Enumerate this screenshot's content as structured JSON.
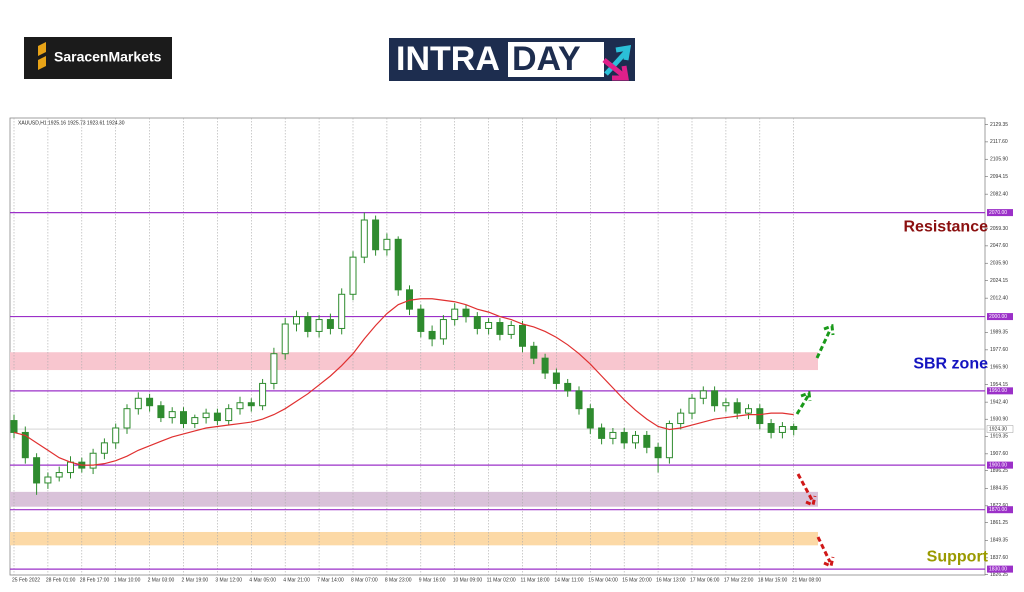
{
  "header": {
    "brand": "SaracenMarkets",
    "title_parts": [
      "INTRA",
      "DAY"
    ]
  },
  "chart_data": {
    "type": "candlestick",
    "title": "XAUUSD,H1  1925.16 1925.73 1923.61 1924.30",
    "color": "#2e8b2e",
    "categories": [
      "25 Feb 2022",
      null,
      null,
      "28 Feb 01:00",
      null,
      null,
      "28 Feb 17:00",
      null,
      null,
      "1 Mar 10:00",
      null,
      null,
      "2 Mar 03:00",
      null,
      null,
      "2 Mar 19:00",
      null,
      null,
      "3 Mar 12:00",
      null,
      null,
      "4 Mar 05:00",
      null,
      null,
      "4 Mar 21:00",
      null,
      null,
      "7 Mar 14:00",
      null,
      null,
      "8 Mar 07:00",
      null,
      null,
      "8 Mar 23:00",
      null,
      null,
      "9 Mar 16:00",
      null,
      null,
      "10 Mar 09:00",
      null,
      null,
      "11 Mar 02:00",
      null,
      null,
      "11 Mar 18:00",
      null,
      null,
      "14 Mar 11:00",
      null,
      null,
      "15 Mar 04:00",
      null,
      null,
      "15 Mar 20:00",
      null,
      null,
      "16 Mar 13:00",
      null,
      null,
      "17 Mar 06:00",
      null,
      null,
      "17 Mar 22:00",
      null,
      null,
      "18 Mar 15:00",
      null,
      null,
      "21 Mar 08:00"
    ],
    "open": [
      1930,
      1922,
      1905,
      1888,
      1892,
      1895,
      1902,
      1898,
      1908,
      1915,
      1925,
      1938,
      1945,
      1940,
      1932,
      1936,
      1928,
      1932,
      1935,
      1930,
      1938,
      1942,
      1940,
      1955,
      1975,
      1995,
      2000,
      1990,
      1998,
      1992,
      2015,
      2040,
      2065,
      2045,
      2052,
      2018,
      2005,
      1990,
      1985,
      1998,
      2005,
      2000,
      1992,
      1996,
      1988,
      1994,
      1980,
      1972,
      1962,
      1955,
      1950,
      1938,
      1925,
      1918,
      1922,
      1915,
      1920,
      1912,
      1905,
      1928,
      1935,
      1945,
      1950,
      1940,
      1942,
      1935,
      1938,
      1928,
      1922,
      1926
    ],
    "high": [
      1934,
      1926,
      1908,
      1895,
      1899,
      1906,
      1905,
      1911,
      1918,
      1928,
      1941,
      1949,
      1948,
      1943,
      1939,
      1939,
      1934,
      1938,
      1938,
      1941,
      1946,
      1945,
      1958,
      1979,
      1999,
      2004,
      2003,
      2001,
      2002,
      2019,
      2044,
      2070,
      2068,
      2056,
      2054,
      2021,
      2008,
      1994,
      2001,
      2009,
      2008,
      2003,
      1999,
      1999,
      1997,
      1997,
      1983,
      1975,
      1965,
      1958,
      1953,
      1941,
      1928,
      1925,
      1925,
      1923,
      1923,
      1915,
      1930,
      1938,
      1948,
      1953,
      1953,
      1945,
      1945,
      1941,
      1941,
      1931,
      1929,
      1928
    ],
    "low": [
      1918,
      1901,
      1880,
      1884,
      1889,
      1891,
      1895,
      1894,
      1904,
      1911,
      1921,
      1934,
      1936,
      1929,
      1928,
      1925,
      1925,
      1928,
      1927,
      1927,
      1934,
      1936,
      1937,
      1951,
      1971,
      1990,
      1986,
      1986,
      1988,
      1988,
      2011,
      2036,
      2041,
      2041,
      2014,
      2001,
      1986,
      1980,
      1981,
      1994,
      1996,
      1988,
      1988,
      1984,
      1985,
      1976,
      1968,
      1958,
      1951,
      1946,
      1934,
      1921,
      1914,
      1914,
      1911,
      1911,
      1908,
      1895,
      1901,
      1924,
      1931,
      1941,
      1936,
      1936,
      1931,
      1931,
      1924,
      1918,
      1918,
      1920
    ],
    "close": [
      1922,
      1905,
      1888,
      1892,
      1895,
      1902,
      1898,
      1908,
      1915,
      1925,
      1938,
      1945,
      1940,
      1932,
      1936,
      1928,
      1932,
      1935,
      1930,
      1938,
      1942,
      1940,
      1955,
      1975,
      1995,
      2000,
      1990,
      1998,
      1992,
      2015,
      2040,
      2065,
      2045,
      2052,
      2018,
      2005,
      1990,
      1985,
      1998,
      2005,
      2000,
      1992,
      1996,
      1988,
      1994,
      1980,
      1972,
      1962,
      1955,
      1950,
      1938,
      1925,
      1918,
      1922,
      1915,
      1920,
      1912,
      1905,
      1928,
      1935,
      1945,
      1950,
      1940,
      1942,
      1935,
      1938,
      1928,
      1922,
      1926,
      1924
    ],
    "moving_average": {
      "color": "#e03030",
      "values": [
        1922,
        1920,
        1915,
        1910,
        1905,
        1902,
        1900,
        1900,
        1901,
        1903,
        1906,
        1910,
        1913,
        1916,
        1919,
        1921,
        1923,
        1925,
        1926,
        1927,
        1928,
        1929,
        1931,
        1934,
        1938,
        1943,
        1948,
        1954,
        1960,
        1967,
        1975,
        1985,
        1994,
        2002,
        2008,
        2011,
        2012,
        2012,
        2011,
        2010,
        2008,
        2005,
        2003,
        2000,
        1998,
        1995,
        1993,
        1990,
        1986,
        1981,
        1975,
        1968,
        1960,
        1952,
        1944,
        1937,
        1931,
        1926,
        1924,
        1925,
        1927,
        1929,
        1931,
        1932,
        1933,
        1934,
        1934,
        1935,
        1935,
        1934
      ]
    },
    "ylim": [
      1822,
      2133
    ],
    "yticks": [
      2129.35,
      {
        "value": 2117.6,
        "label": "2117.60"
      },
      {
        "value": 2105.9,
        "label": "2105.90"
      },
      2094.15,
      {
        "value": 2082.4,
        "label": "2082.40"
      },
      {
        "value": 2059.3,
        "label": "2059.30"
      },
      {
        "value": 2047.6,
        "label": "2047.60"
      },
      {
        "value": 2035.9,
        "label": "2035.90"
      },
      2024.15,
      {
        "value": 2012.4,
        "label": "2012.40"
      },
      1989.35,
      {
        "value": 1977.6,
        "label": "1977.60"
      },
      {
        "value": 1965.9,
        "label": "1965.90"
      },
      1954.15,
      {
        "value": 1942.4,
        "label": "1942.40"
      },
      {
        "value": 1930.9,
        "label": "1930.90"
      },
      1919.35,
      {
        "value": 1907.6,
        "label": "1907.60"
      },
      1896.25,
      1884.35,
      {
        "value": 1872.6,
        "label": "1872.60"
      },
      1861.25,
      1849.35,
      {
        "value": 1837.6,
        "label": "1837.60"
      },
      1826.25
    ],
    "levels": [
      {
        "value": 2070,
        "label": "2070.00"
      },
      {
        "value": 2000,
        "label": "2000.00"
      },
      {
        "value": 1950,
        "label": "1950.00"
      },
      {
        "value": 1900,
        "label": "1900.00"
      },
      {
        "value": 1870,
        "label": "1870.00"
      },
      {
        "value": 1830,
        "label": "1830.00"
      }
    ],
    "level_color": "#9b30c8",
    "current_price": {
      "value": 1924.3,
      "label": "1924.30"
    },
    "zones": [
      {
        "low": 1964,
        "high": 1976,
        "color": "#f8c6cf"
      },
      {
        "low": 1872,
        "high": 1882,
        "color": "#d9c2d9"
      },
      {
        "low": 1846,
        "high": 1855,
        "color": "#fcd9a6"
      }
    ],
    "annotations": [
      {
        "text": "Resistance",
        "value": 2060,
        "color": "#8b1010"
      },
      {
        "text": "SBR zone",
        "value": 1968,
        "color": "#1414c0"
      },
      {
        "text": "Support",
        "value": 1838,
        "color": "#9a9a00"
      }
    ]
  }
}
